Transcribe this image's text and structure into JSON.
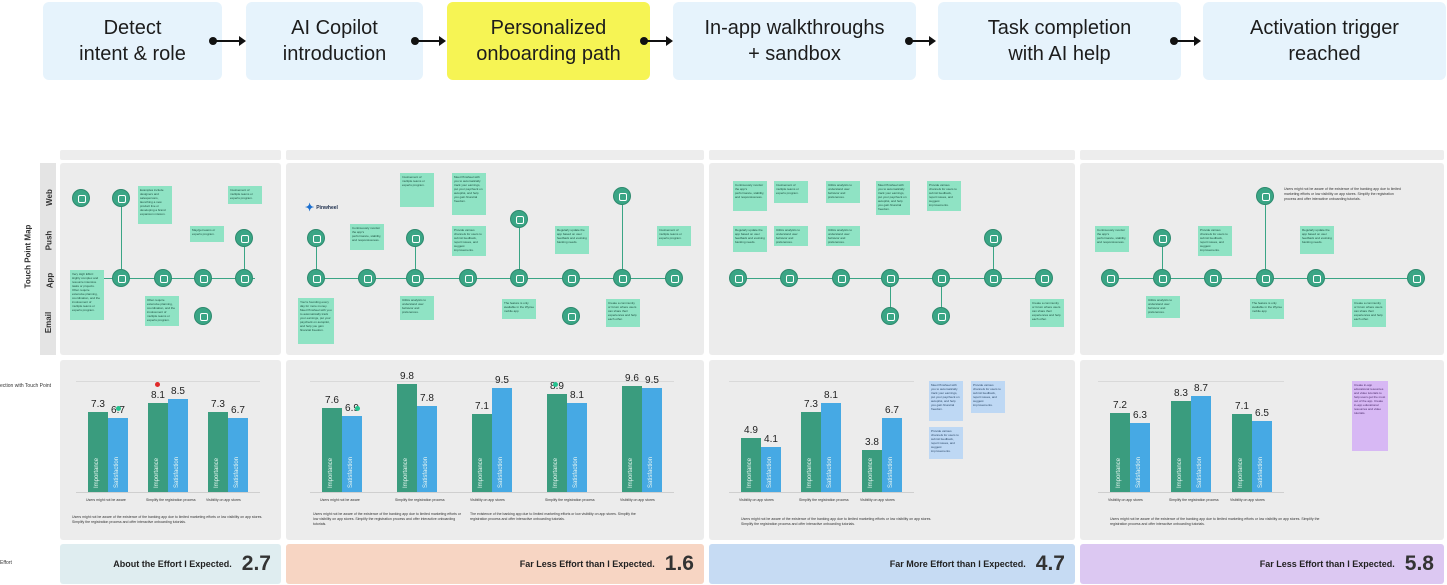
{
  "flow": {
    "steps": [
      {
        "line1": "Detect",
        "line2": "intent & role"
      },
      {
        "line1": "AI Copilot",
        "line2": "introduction"
      },
      {
        "line1": "Personalized",
        "line2": "onboarding path"
      },
      {
        "line1": "In-app walkthroughs",
        "line2": "+ sandbox"
      },
      {
        "line1": "Task completion",
        "line2": "with AI help"
      },
      {
        "line1": "Activation trigger",
        "line2": "reached"
      }
    ]
  },
  "map": {
    "title": "Touch Point Map",
    "lanes": [
      "Web",
      "Push",
      "App",
      "Email"
    ],
    "logo": "Pinwheel"
  },
  "side": {
    "chart_label_cut": "ection with Touch Point",
    "effort_label_cut": "Effort"
  },
  "colors": {
    "importance": "#3a9c7e",
    "satisfaction": "#46a9e4",
    "active_step": "#f6f454",
    "step": "#e6f3fc",
    "note_green": "#8fe3c4",
    "note_blue": "#bed8f4",
    "note_purple": "#d7b8f4"
  },
  "chart_data": [
    {
      "type": "bar",
      "series_names": [
        "Importance",
        "Satisfaction"
      ],
      "categories": [
        "Users might not be aware",
        "Simplify the registration process",
        "Visibility on app stores"
      ],
      "importance": [
        7.3,
        8.1,
        7.3
      ],
      "satisfaction": [
        6.7,
        8.5,
        6.7
      ],
      "footnote": "Users might not be aware of the existence of the banking app due to limited marketing efforts or low visibility on app stores. Simplify the registration process and offer interactive onboarding tutorials."
    },
    {
      "type": "bar",
      "series_names": [
        "Importance",
        "Satisfaction"
      ],
      "categories": [
        "Users might not be aware",
        "Simplify the registration process",
        "Visibility on app stores",
        "Simplify the registration process",
        "Visibility on app stores"
      ],
      "importance": [
        7.6,
        9.8,
        7.1,
        8.9,
        9.6
      ],
      "satisfaction": [
        6.9,
        7.8,
        9.5,
        8.1,
        9.5
      ],
      "footnote": "Users might not be aware of the existence of the banking app due to limited marketing efforts or low visibility on app stores. Simplify the registration process and offer interactive onboarding tutorials.",
      "footnote2": "The existence of the banking app due to limited marketing efforts or low visibility on app stores. Simplify the registration process and offer interactive onboarding tutorials."
    },
    {
      "type": "bar",
      "series_names": [
        "Importance",
        "Satisfaction"
      ],
      "categories": [
        "Visibility on app stores",
        "Simplify the registration process",
        "Visibility on app stores"
      ],
      "importance": [
        4.9,
        7.3,
        3.8
      ],
      "satisfaction": [
        4.1,
        8.1,
        6.7
      ],
      "footnote": "Users might not be aware of the existence of the banking app due to limited marketing efforts or low visibility on app stores. Simplify the registration process and offer interactive onboarding tutorials."
    },
    {
      "type": "bar",
      "series_names": [
        "Importance",
        "Satisfaction"
      ],
      "categories": [
        "Visibility on app stores",
        "Simplify the registration process",
        "Visibility on app stores"
      ],
      "importance": [
        7.2,
        8.3,
        7.1
      ],
      "satisfaction": [
        6.3,
        8.7,
        6.5
      ],
      "footnote": "Users might not be aware of the existence of the banking app due to limited marketing efforts or low visibility on app stores. Simplify the registration process and offer interactive onboarding tutorials."
    }
  ],
  "effort": [
    {
      "label": "About the Effort I Expected.",
      "score": "2.7",
      "color": "#dfedf0"
    },
    {
      "label": "Far Less Effort than I Expected.",
      "score": "1.6",
      "color": "#f7d5c3"
    },
    {
      "label": "Far More Effort than I Expected.",
      "score": "4.7",
      "color": "#c6dbf3"
    },
    {
      "label": "Far Less Effort than I Expected.",
      "score": "5.8",
      "color": "#dcc8f2"
    }
  ],
  "notes": {
    "n1": "Examples include designers and salespersons, launching a new product line or developing a brand expansion mission.",
    "n2": "Involvement of multiple teams or experts program.",
    "n3": "Very High Effort: Highly complex and resource intensive tasks or projects. Often require extensive planning, coordination, and the involvement of multiple teams or experts program.",
    "n4": "May/get teams or experts program.",
    "n5": "Often require extensive planning, coordination, and the involvement of multiple teams or experts program.",
    "n6": "You're founding every day for more money. Meet Pinwheel with you to automatically track your earnings, put your paycheck on autopilot, and help you gain financial freedom.",
    "n7": "Continuously monitor the app's performance, stability, and responsiveness.",
    "n8": "Involvement of multiple teams or experts program.",
    "n9": "Meet Pinwheel with you to automatically track your earnings, put your paycheck on autopilot, and help you gain financial freedom.",
    "n10": "Provide various channels for users to submit feedback, report issues, and suggest improvements.",
    "n11": "Utilize analytics to understand user behavior and preferences.",
    "n12": "The feature is only available in the Wyzee mobile app",
    "n13": "Regularly update the app based on user feedback and evolving banking needs.",
    "n14": "Involvement of multiple teams or experts program.",
    "n15": "Create a community or forum where users can share their experiences and help each other.",
    "n16": "Create in-app educational resources and video tutorials to help users get the most out of the app. Create in-app educational resources and video tutorials."
  }
}
